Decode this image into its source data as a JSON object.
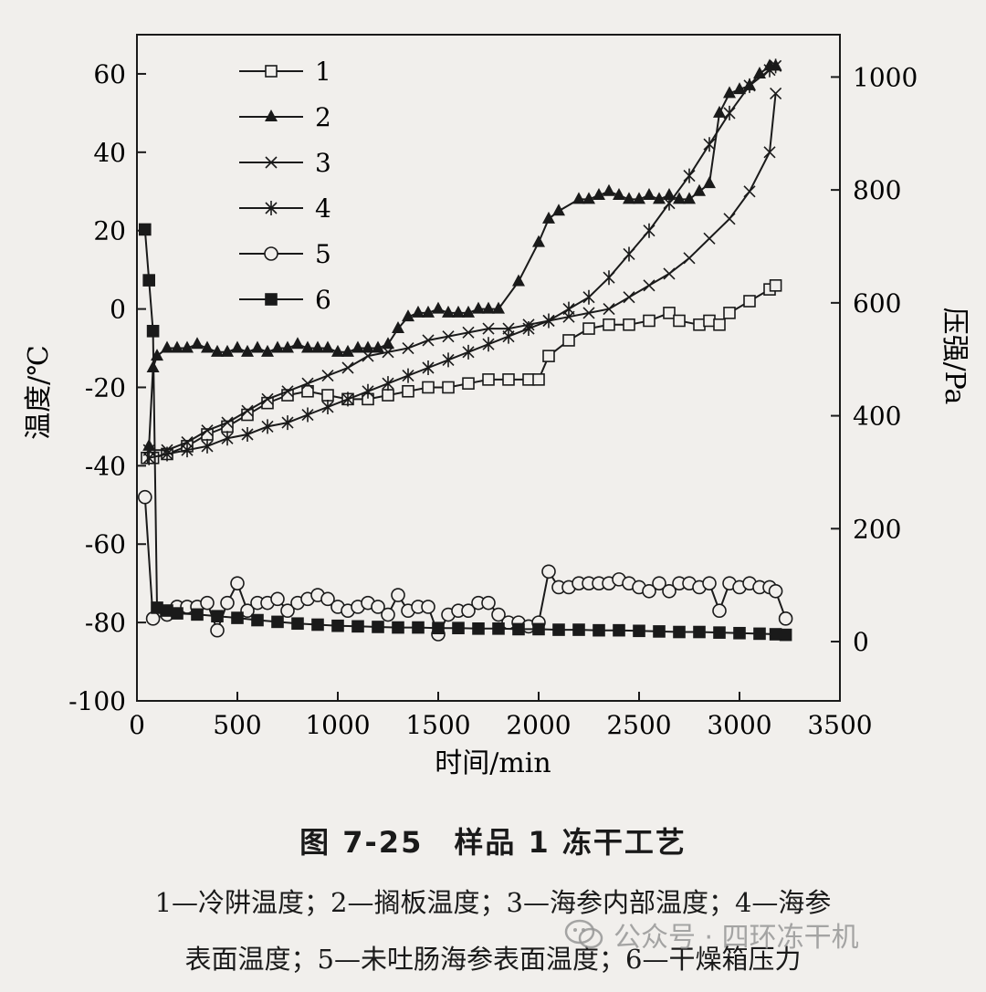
{
  "chart_data": {
    "type": "line",
    "xlabel": "时间/min",
    "ylabel_left": "温度/℃",
    "ylabel_right": "压强/Pa",
    "xlim": [
      0,
      3500
    ],
    "ylim_left": [
      -100,
      70
    ],
    "ylim_right": [
      -105,
      1075
    ],
    "xticks": [
      0,
      500,
      1000,
      1500,
      2000,
      2500,
      3000,
      3500
    ],
    "yticks_left": [
      -100,
      -80,
      -60,
      -40,
      -20,
      0,
      20,
      40,
      60
    ],
    "yticks_right": [
      0,
      200,
      400,
      600,
      800,
      1000
    ],
    "legend_position": "top-left",
    "series": [
      {
        "name": "1",
        "marker": "square-open",
        "axis": "left",
        "x": [
          50,
          80,
          150,
          250,
          350,
          450,
          550,
          650,
          750,
          850,
          950,
          1050,
          1150,
          1250,
          1350,
          1450,
          1550,
          1650,
          1750,
          1850,
          1950,
          2000,
          2050,
          2150,
          2250,
          2350,
          2450,
          2550,
          2650,
          2700,
          2800,
          2850,
          2900,
          2950,
          3050,
          3150,
          3180
        ],
        "y": [
          -38,
          -38,
          -37,
          -35,
          -32,
          -30,
          -27,
          -24,
          -22,
          -21,
          -22,
          -23,
          -23,
          -22,
          -21,
          -20,
          -20,
          -19,
          -18,
          -18,
          -18,
          -18,
          -12,
          -8,
          -5,
          -4,
          -4,
          -3,
          -1,
          -3,
          -4,
          -3,
          -4,
          -1,
          2,
          5,
          6
        ]
      },
      {
        "name": "2",
        "marker": "triangle-filled",
        "axis": "left",
        "x": [
          60,
          80,
          100,
          150,
          200,
          250,
          300,
          350,
          400,
          450,
          500,
          550,
          600,
          650,
          700,
          750,
          800,
          850,
          900,
          950,
          1000,
          1050,
          1100,
          1150,
          1200,
          1250,
          1300,
          1350,
          1400,
          1450,
          1500,
          1550,
          1600,
          1650,
          1700,
          1750,
          1800,
          1900,
          2000,
          2050,
          2100,
          2200,
          2250,
          2300,
          2350,
          2400,
          2450,
          2500,
          2550,
          2600,
          2650,
          2700,
          2750,
          2800,
          2850,
          2900,
          2950,
          3000,
          3050,
          3100,
          3150,
          3180
        ],
        "y": [
          -35,
          -15,
          -12,
          -10,
          -10,
          -10,
          -9,
          -10,
          -11,
          -11,
          -10,
          -11,
          -10,
          -11,
          -10,
          -10,
          -9,
          -10,
          -10,
          -10,
          -11,
          -11,
          -10,
          -10,
          -10,
          -9,
          -5,
          -2,
          -1,
          -1,
          0,
          -1,
          -1,
          -1,
          0,
          0,
          0,
          7,
          17,
          23,
          25,
          28,
          28,
          29,
          30,
          29,
          28,
          28,
          29,
          28,
          29,
          28,
          28,
          30,
          32,
          50,
          55,
          56,
          57,
          60,
          62,
          62
        ]
      },
      {
        "name": "3",
        "marker": "x",
        "axis": "left",
        "x": [
          60,
          150,
          250,
          350,
          450,
          550,
          650,
          750,
          850,
          950,
          1050,
          1150,
          1250,
          1350,
          1450,
          1550,
          1650,
          1750,
          1850,
          1950,
          2050,
          2150,
          2250,
          2350,
          2450,
          2550,
          2650,
          2750,
          2850,
          2950,
          3050,
          3150,
          3180
        ],
        "y": [
          -36,
          -36,
          -34,
          -31,
          -29,
          -26,
          -23,
          -21,
          -19,
          -17,
          -15,
          -12,
          -11,
          -10,
          -8,
          -7,
          -6,
          -5,
          -5,
          -4,
          -3,
          -2,
          -1,
          0,
          3,
          6,
          9,
          13,
          18,
          23,
          30,
          40,
          55
        ]
      },
      {
        "name": "4",
        "marker": "asterisk",
        "axis": "left",
        "x": [
          60,
          150,
          250,
          350,
          450,
          550,
          650,
          750,
          850,
          950,
          1050,
          1150,
          1250,
          1350,
          1450,
          1550,
          1650,
          1750,
          1850,
          1950,
          2050,
          2150,
          2250,
          2350,
          2450,
          2550,
          2650,
          2750,
          2850,
          2950,
          3050,
          3150,
          3180
        ],
        "y": [
          -38,
          -37,
          -36,
          -35,
          -33,
          -32,
          -30,
          -29,
          -27,
          -25,
          -23,
          -21,
          -19,
          -17,
          -15,
          -13,
          -11,
          -9,
          -7,
          -5,
          -3,
          0,
          3,
          8,
          14,
          20,
          27,
          34,
          42,
          50,
          57,
          61,
          62
        ]
      },
      {
        "name": "5",
        "marker": "circle-open",
        "axis": "left",
        "x": [
          40,
          80,
          150,
          200,
          250,
          300,
          350,
          400,
          450,
          500,
          550,
          600,
          650,
          700,
          750,
          800,
          850,
          900,
          950,
          1000,
          1050,
          1100,
          1150,
          1200,
          1250,
          1300,
          1350,
          1400,
          1450,
          1500,
          1550,
          1600,
          1650,
          1700,
          1750,
          1800,
          1850,
          1900,
          1950,
          2000,
          2050,
          2100,
          2150,
          2200,
          2250,
          2300,
          2350,
          2400,
          2450,
          2500,
          2550,
          2600,
          2650,
          2700,
          2750,
          2800,
          2850,
          2900,
          2950,
          3000,
          3050,
          3100,
          3150,
          3180,
          3230
        ],
        "y": [
          -48,
          -79,
          -78,
          -76,
          -76,
          -76,
          -75,
          -82,
          -75,
          -70,
          -77,
          -75,
          -75,
          -74,
          -77,
          -75,
          -74,
          -73,
          -74,
          -76,
          -77,
          -76,
          -75,
          -76,
          -78,
          -73,
          -77,
          -76,
          -76,
          -83,
          -78,
          -77,
          -77,
          -75,
          -75,
          -78,
          -80,
          -80,
          -81,
          -80,
          -67,
          -71,
          -71,
          -70,
          -70,
          -70,
          -70,
          -69,
          -70,
          -71,
          -72,
          -70,
          -72,
          -70,
          -70,
          -71,
          -70,
          -77,
          -70,
          -71,
          -70,
          -71,
          -71,
          -72,
          -79
        ]
      },
      {
        "name": "6",
        "marker": "square-filled",
        "axis": "right",
        "x": [
          40,
          60,
          80,
          100,
          150,
          200,
          300,
          400,
          500,
          600,
          700,
          800,
          900,
          1000,
          1100,
          1200,
          1300,
          1400,
          1500,
          1600,
          1700,
          1800,
          1900,
          2000,
          2100,
          2200,
          2300,
          2400,
          2500,
          2600,
          2700,
          2800,
          2900,
          3000,
          3100,
          3180,
          3230
        ],
        "y": [
          730,
          640,
          550,
          60,
          55,
          50,
          48,
          45,
          42,
          38,
          35,
          32,
          30,
          28,
          27,
          26,
          25,
          25,
          24,
          24,
          23,
          23,
          22,
          22,
          21,
          21,
          20,
          20,
          19,
          18,
          17,
          17,
          16,
          15,
          14,
          13,
          12
        ]
      }
    ]
  },
  "caption": {
    "title": "图 7-25　样品 1 冻干工艺",
    "line1": "1—冷阱温度；2—搁板温度；3—海参内部温度；4—海参",
    "line2": "表面温度；5—未吐肠海参表面温度；6—干燥箱压力"
  },
  "watermark": {
    "text": "公众号 · 四环冻干机",
    "icon": "wechat-icon"
  }
}
